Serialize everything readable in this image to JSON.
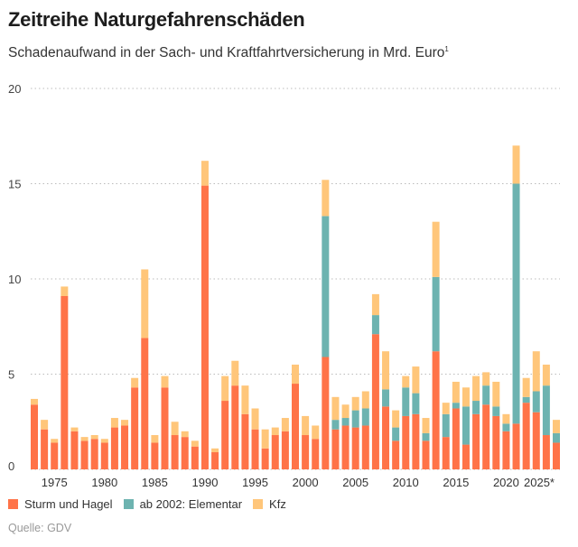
{
  "header": {
    "title": "Zeitreihe Naturgefahrenschäden",
    "subtitle": "Schadenaufwand in der Sach- und Kraftfahrtversicherung in Mrd. Euro",
    "subtitle_footnote": "1"
  },
  "footer": {
    "source": "Quelle: GDV"
  },
  "chart_data": {
    "type": "bar",
    "stacked": true,
    "title": "Zeitreihe Naturgefahrenschäden",
    "ylabel": "",
    "xlabel": "",
    "ylim": [
      0,
      20
    ],
    "yticks": [
      0,
      5,
      10,
      15,
      20
    ],
    "grid": true,
    "legend_placement": "bottom-left",
    "xtick_labels": [
      {
        "year": 1975,
        "label": "1975"
      },
      {
        "year": 1980,
        "label": "1980"
      },
      {
        "year": 1985,
        "label": "1985"
      },
      {
        "year": 1990,
        "label": "1990"
      },
      {
        "year": 1995,
        "label": "1995"
      },
      {
        "year": 2000,
        "label": "2000"
      },
      {
        "year": 2005,
        "label": "2005"
      },
      {
        "year": 2010,
        "label": "2010"
      },
      {
        "year": 2015,
        "label": "2015"
      },
      {
        "year": 2020,
        "label": "2020"
      },
      {
        "year": 2025,
        "label": "2025*"
      }
    ],
    "categories": [
      1973,
      1974,
      1975,
      1976,
      1977,
      1978,
      1979,
      1980,
      1981,
      1982,
      1983,
      1984,
      1985,
      1986,
      1987,
      1988,
      1989,
      1990,
      1991,
      1992,
      1993,
      1994,
      1995,
      1996,
      1997,
      1998,
      1999,
      2000,
      2001,
      2002,
      2003,
      2004,
      2005,
      2006,
      2007,
      2008,
      2009,
      2010,
      2011,
      2012,
      2013,
      2014,
      2015,
      2016,
      2017,
      2018,
      2019,
      2020,
      2021,
      2022,
      2023,
      2024,
      2025
    ],
    "series": [
      {
        "name": "Sturm und Hagel",
        "color": "#ff7348",
        "values": [
          3.4,
          2.1,
          1.4,
          9.1,
          2.0,
          1.5,
          1.6,
          1.4,
          2.2,
          2.3,
          4.3,
          6.9,
          1.4,
          4.3,
          1.8,
          1.7,
          1.2,
          14.9,
          0.9,
          3.6,
          4.4,
          2.9,
          2.1,
          1.1,
          1.8,
          2.0,
          4.5,
          1.8,
          1.6,
          5.9,
          2.1,
          2.3,
          2.2,
          2.3,
          7.1,
          3.3,
          1.5,
          2.8,
          2.9,
          1.5,
          6.2,
          1.7,
          3.2,
          1.3,
          2.9,
          3.4,
          2.8,
          2.0,
          2.4,
          3.5,
          3.0,
          1.8,
          1.4
        ]
      },
      {
        "name": "ab 2002: Elementar",
        "color": "#6db3b0",
        "values": [
          0,
          0,
          0,
          0,
          0,
          0,
          0,
          0,
          0,
          0,
          0,
          0,
          0,
          0,
          0,
          0,
          0,
          0,
          0,
          0,
          0,
          0,
          0,
          0,
          0,
          0,
          0,
          0,
          0,
          7.4,
          0.5,
          0.4,
          0.9,
          0.9,
          1.0,
          0.9,
          0.7,
          1.5,
          1.1,
          0.4,
          3.9,
          1.2,
          0.3,
          2.0,
          0.7,
          1.0,
          0.5,
          0.4,
          12.6,
          0.3,
          1.1,
          2.6,
          0.5
        ]
      },
      {
        "name": "Kfz",
        "color": "#ffc67a",
        "values": [
          0.3,
          0.5,
          0.2,
          0.5,
          0.2,
          0.2,
          0.2,
          0.2,
          0.5,
          0.3,
          0.5,
          3.6,
          0.4,
          0.6,
          0.7,
          0.3,
          0.3,
          1.3,
          0.2,
          1.3,
          1.3,
          1.5,
          1.1,
          1.0,
          0.4,
          0.7,
          1.0,
          1.0,
          0.7,
          1.9,
          1.2,
          0.7,
          0.7,
          0.9,
          1.1,
          2.0,
          0.9,
          0.6,
          1.4,
          0.8,
          2.9,
          0.6,
          1.1,
          1.0,
          1.3,
          0.7,
          1.3,
          0.5,
          2.0,
          1.0,
          2.1,
          1.1,
          0.7
        ]
      }
    ]
  }
}
